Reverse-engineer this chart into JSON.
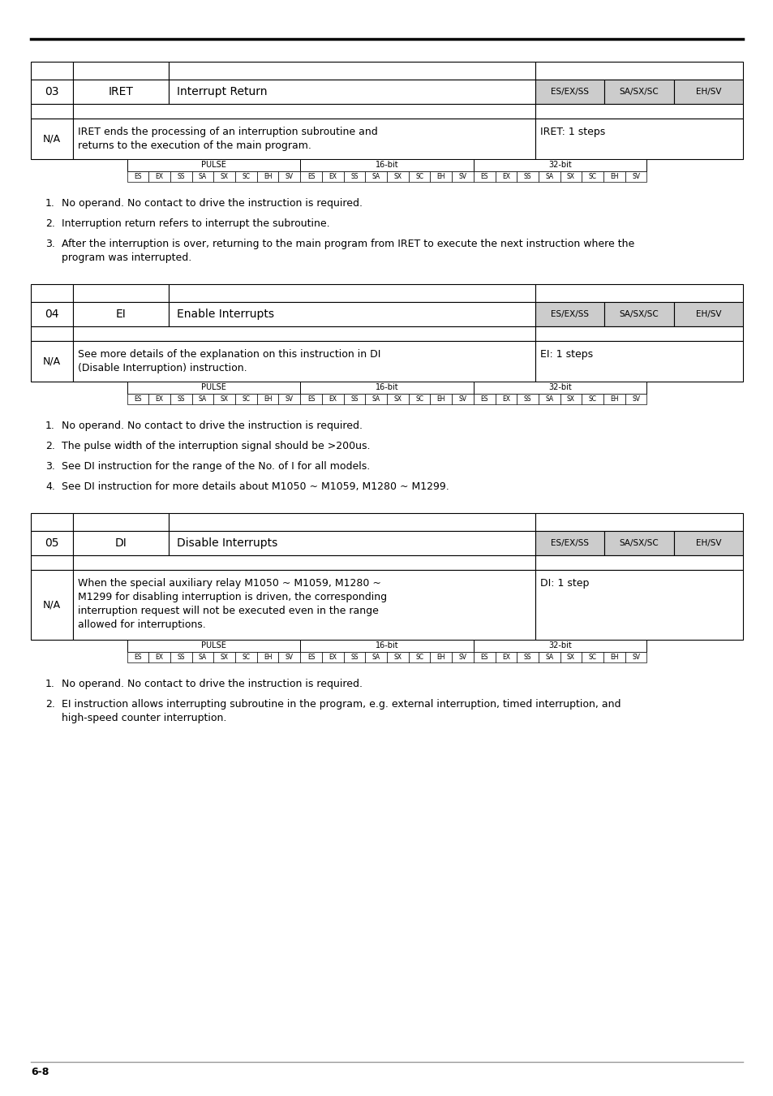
{
  "page_bg": "#ffffff",
  "page_label": "6-8",
  "sections": [
    {
      "num": "03",
      "cmd": "IRET",
      "desc": "Interrupt Return",
      "chips": [
        "ES/EX/SS",
        "SA/SX/SC",
        "EH/SV"
      ],
      "na_left_lines": [
        "IRET ends the processing of an interruption subroutine and",
        "returns to the execution of the main program."
      ],
      "na_right": "IRET: 1 steps",
      "notes": [
        [
          "No operand. No contact to drive the instruction is required."
        ],
        [
          "Interruption return refers to interrupt the subroutine."
        ],
        [
          "After the interruption is over, returning to the main program from IRET to execute the next instruction where the",
          "program was interrupted."
        ]
      ]
    },
    {
      "num": "04",
      "cmd": "EI",
      "desc": "Enable Interrupts",
      "chips": [
        "ES/EX/SS",
        "SA/SX/SC",
        "EH/SV"
      ],
      "na_left_lines": [
        "See more details of the explanation on this instruction in DI",
        "(Disable Interruption) instruction."
      ],
      "na_right": "EI: 1 steps",
      "notes": [
        [
          "No operand. No contact to drive the instruction is required."
        ],
        [
          "The pulse width of the interruption signal should be >200us."
        ],
        [
          "See DI instruction for the range of the No. of I for all models."
        ],
        [
          "See DI instruction for more details about M1050 ~ M1059, M1280 ~ M1299."
        ]
      ]
    },
    {
      "num": "05",
      "cmd": "DI",
      "desc": "Disable Interrupts",
      "chips": [
        "ES/EX/SS",
        "SA/SX/SC",
        "EH/SV"
      ],
      "na_left_lines": [
        "When the special auxiliary relay M1050 ~ M1059, M1280 ~",
        "M1299 for disabling interruption is driven, the corresponding",
        "interruption request will not be executed even in the range",
        "allowed for interruptions."
      ],
      "na_right": "DI: 1 step",
      "notes": [
        [
          "No operand. No contact to drive the instruction is required."
        ],
        [
          "EI instruction allows interrupting subroutine in the program, e.g. external interruption, timed interruption, and",
          "high-speed counter interruption."
        ]
      ]
    }
  ],
  "pulse_row": [
    "ES",
    "EX",
    "SS",
    "SA",
    "SX",
    "SC",
    "EH",
    "SV",
    "ES",
    "EX",
    "SS",
    "SA",
    "SX",
    "SC",
    "EH",
    "SV",
    "ES",
    "EX",
    "SS",
    "SA",
    "SX",
    "SC",
    "EH",
    "SV"
  ],
  "pulse_headers": [
    "PULSE",
    "16-bit",
    "32-bit"
  ]
}
